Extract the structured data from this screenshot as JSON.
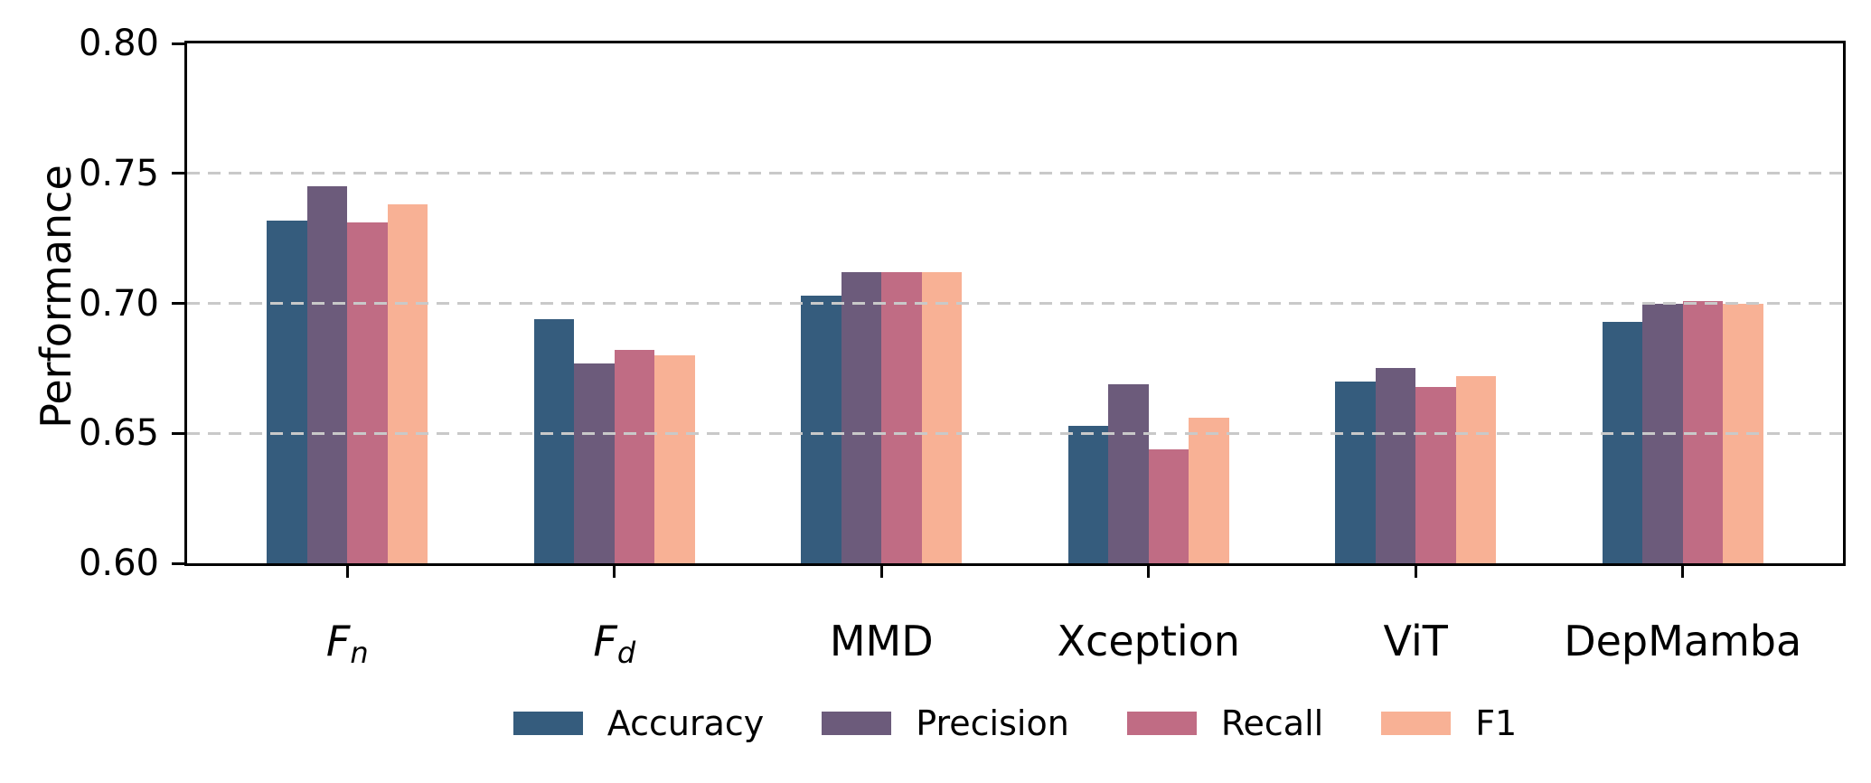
{
  "chart_data": {
    "type": "bar",
    "title": "",
    "xlabel": "",
    "ylabel": "Performance",
    "ylim": [
      0.6,
      0.8
    ],
    "yticks": [
      0.6,
      0.65,
      0.7,
      0.75,
      0.8
    ],
    "ytick_labels": [
      "0.60",
      "0.65",
      "0.70",
      "0.75",
      "0.80"
    ],
    "grid": "horizontal dashed gridlines at y ticks, drawn over bars",
    "grid_color": "#c9c9c9",
    "spine_color": "#000000",
    "legend_position": "bottom center, horizontal row",
    "categories": [
      {
        "base": "F",
        "subscript": "n"
      },
      {
        "base": "F",
        "subscript": "d"
      },
      {
        "base": "MMD",
        "subscript": ""
      },
      {
        "base": "Xception",
        "subscript": ""
      },
      {
        "base": "ViT",
        "subscript": ""
      },
      {
        "base": "DepMamba",
        "subscript": ""
      }
    ],
    "series": [
      {
        "name": "Accuracy",
        "color": "#355C7D",
        "values": [
          0.732,
          0.694,
          0.703,
          0.653,
          0.67,
          0.693
        ]
      },
      {
        "name": "Precision",
        "color": "#6C5B7B",
        "values": [
          0.745,
          0.677,
          0.712,
          0.669,
          0.675,
          0.7
        ]
      },
      {
        "name": "Recall",
        "color": "#C06C84",
        "values": [
          0.731,
          0.682,
          0.712,
          0.644,
          0.668,
          0.701
        ]
      },
      {
        "name": "F1",
        "color": "#F8B195",
        "values": [
          0.738,
          0.68,
          0.712,
          0.656,
          0.672,
          0.7
        ]
      }
    ]
  }
}
